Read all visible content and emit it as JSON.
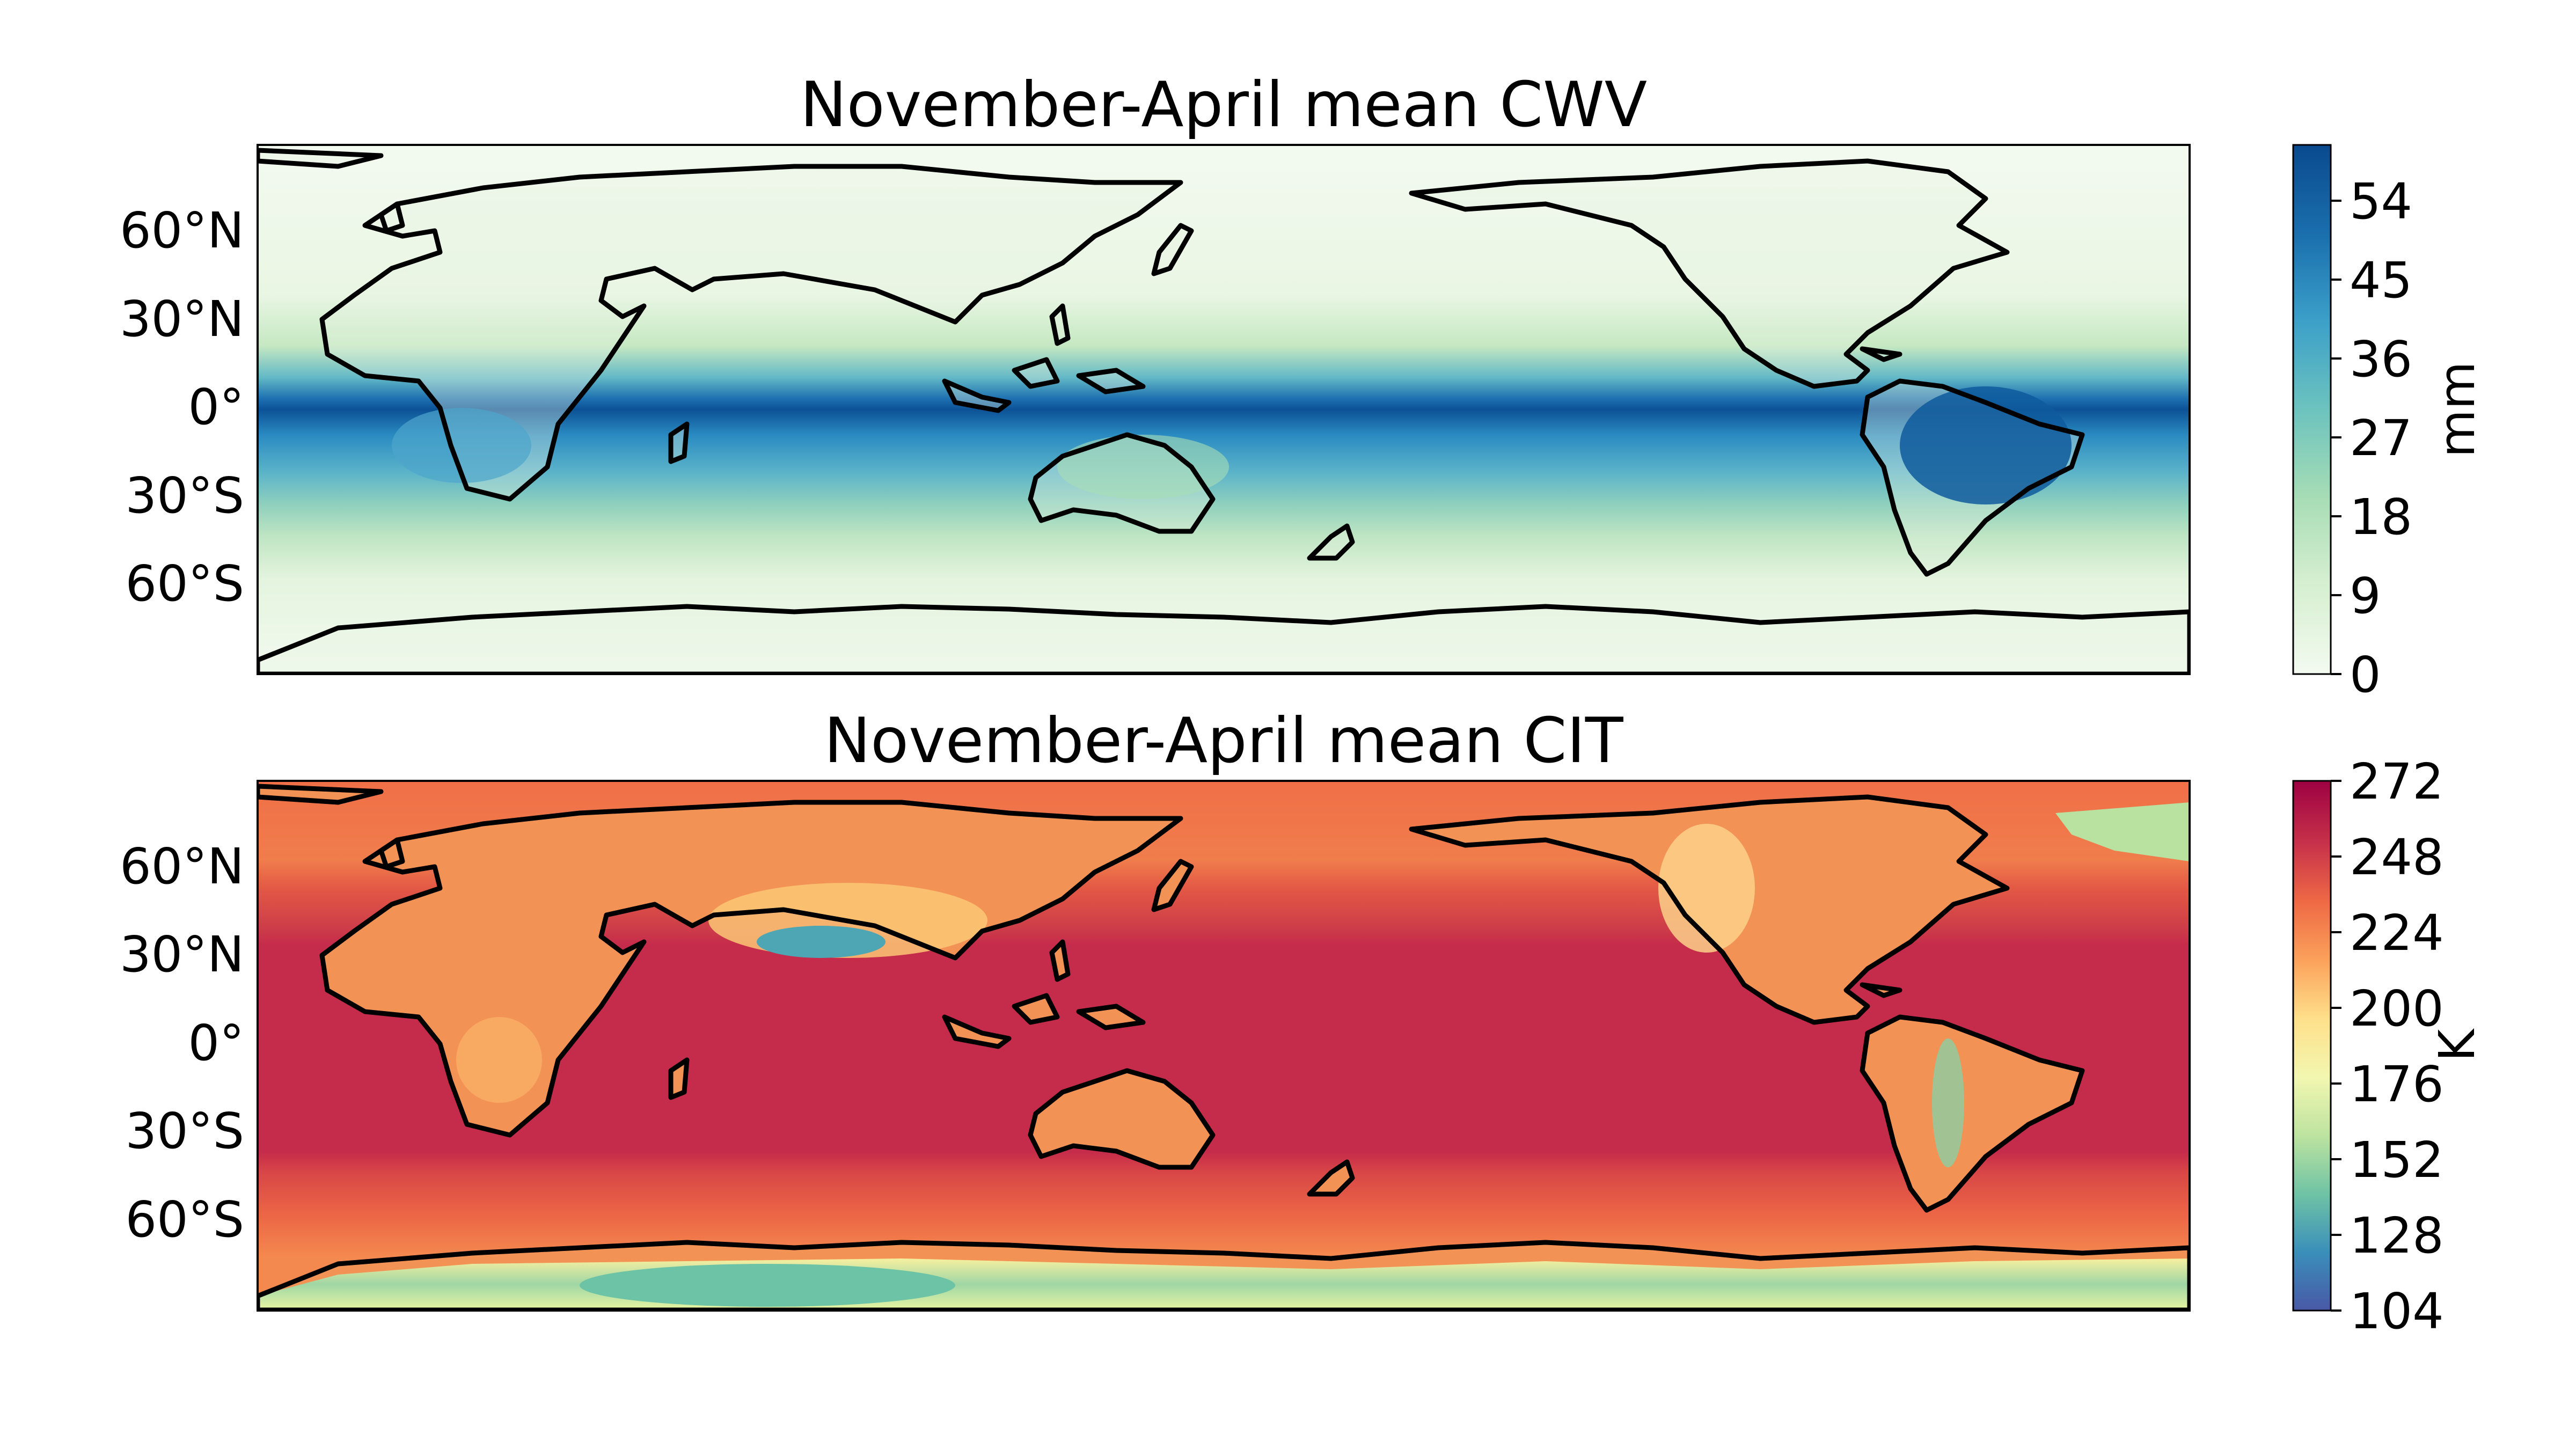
{
  "panels": [
    {
      "title": "November-April mean CWV",
      "lat_ticks": [
        "60°N",
        "30°N",
        "0°",
        "30°S",
        "60°S"
      ],
      "colorbar": {
        "unit": "mm",
        "ticks": [
          "0",
          "9",
          "18",
          "27",
          "36",
          "45",
          "54"
        ],
        "colormap": "GnBu",
        "stops": [
          "#f3faf0",
          "#d6efd0",
          "#a8ddb5",
          "#6cc3be",
          "#3b9fc9",
          "#1a6fad",
          "#0a4a8f"
        ]
      }
    },
    {
      "title": "November-April mean CIT",
      "lat_ticks": [
        "60°N",
        "30°N",
        "0°",
        "30°S",
        "60°S"
      ],
      "colorbar": {
        "unit": "K",
        "ticks": [
          "104",
          "128",
          "152",
          "176",
          "200",
          "224",
          "248",
          "272"
        ],
        "colormap": "Spectral_r",
        "stops": [
          "#4958a6",
          "#3a8fba",
          "#6fc3a5",
          "#bde3a0",
          "#f2f7b0",
          "#fee08b",
          "#fba25b",
          "#ef6a45",
          "#c8324a",
          "#9e0142"
        ]
      }
    }
  ],
  "map": {
    "projection": "PlateCarree",
    "central_longitude": 180,
    "lat_range": [
      -90,
      90
    ],
    "lon_range": [
      0,
      360
    ]
  }
}
